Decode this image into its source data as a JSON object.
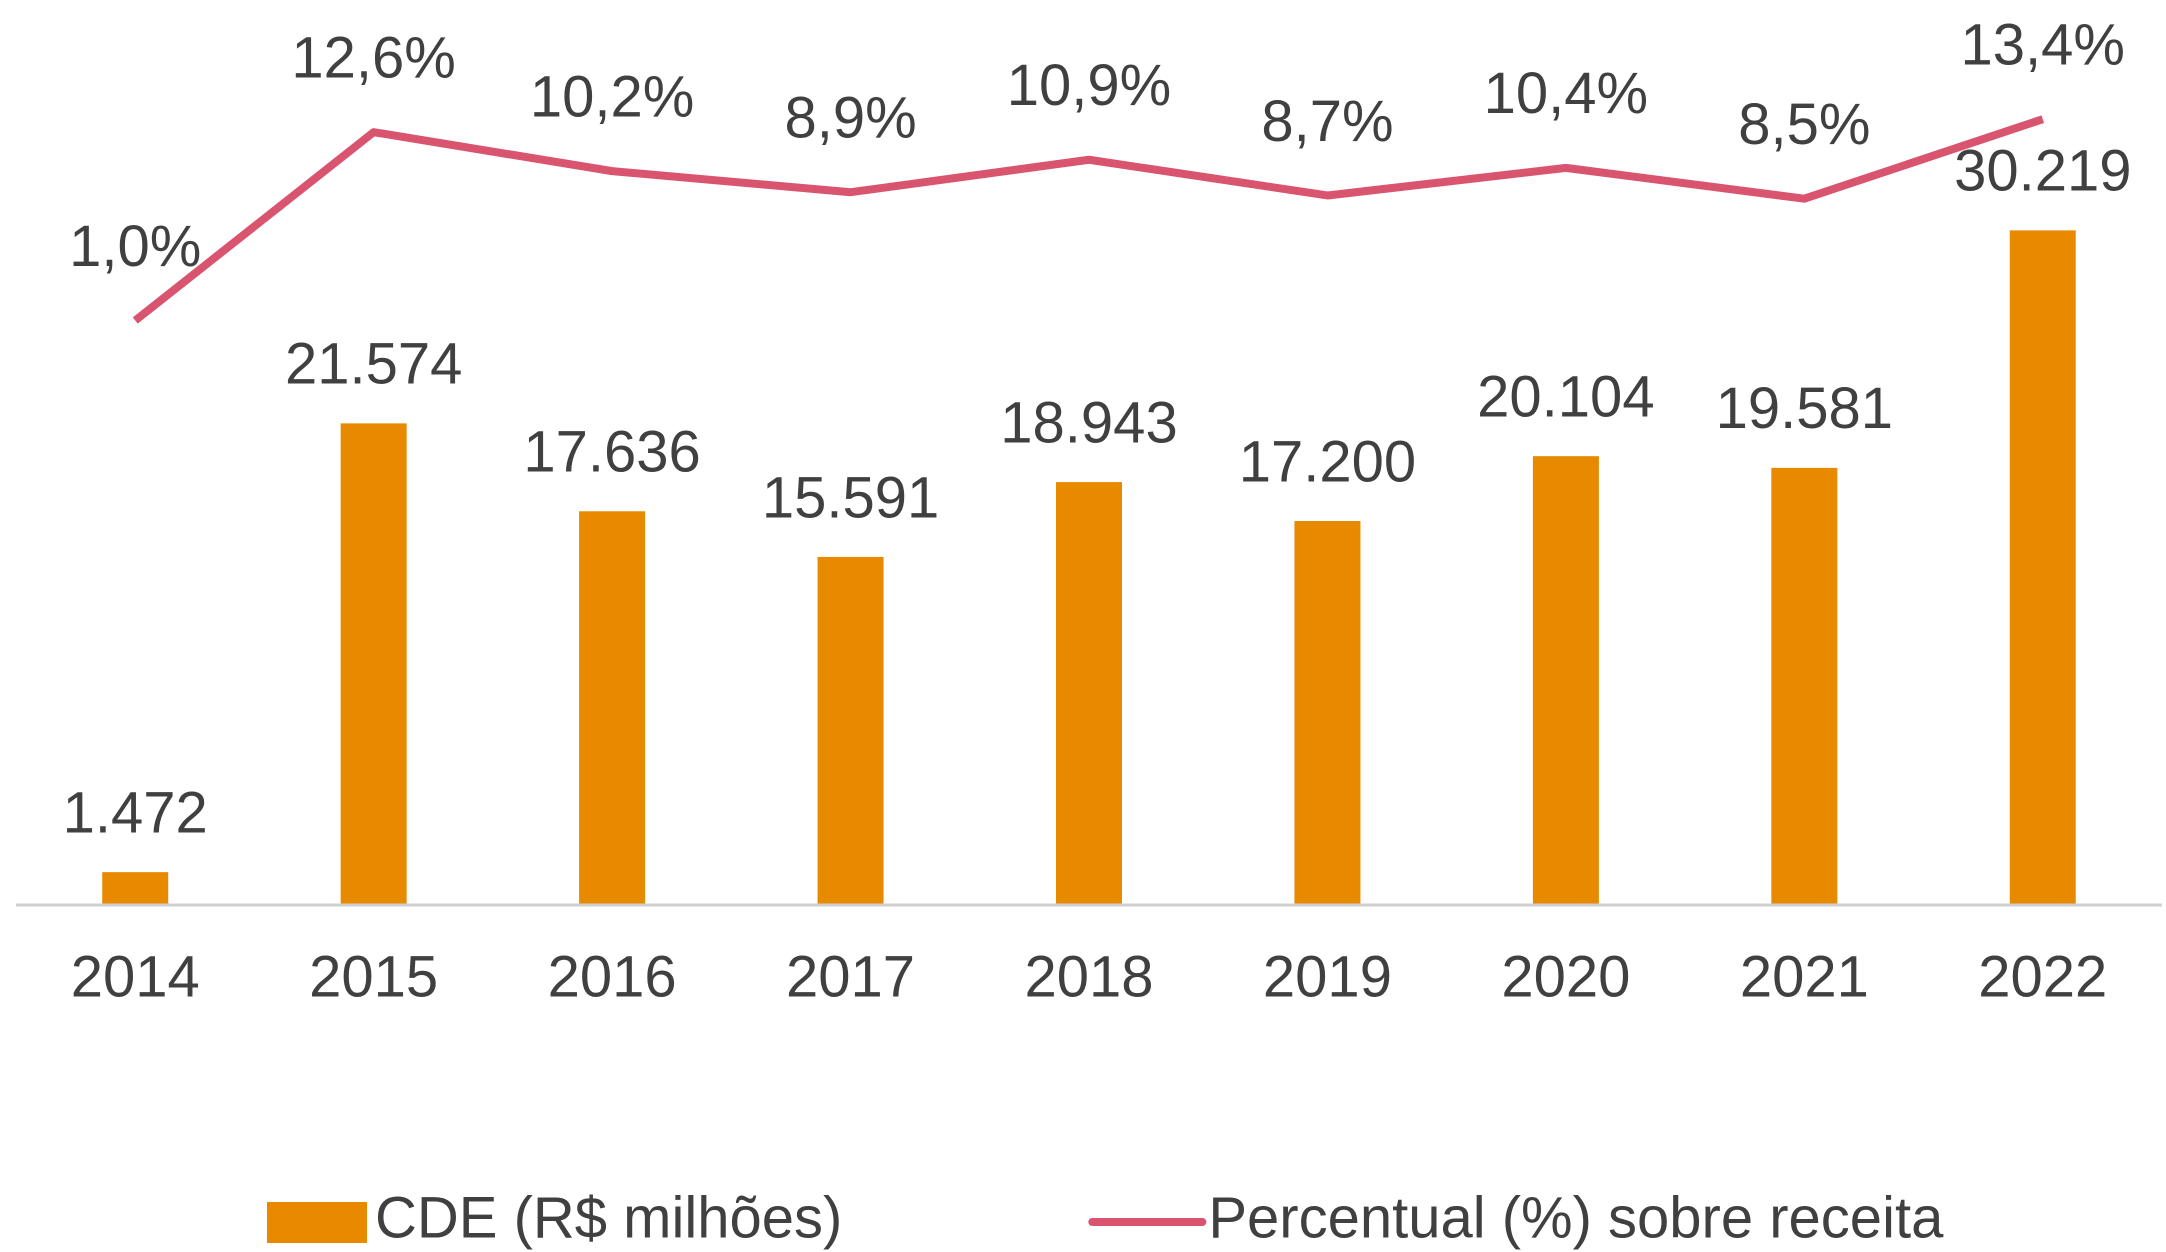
{
  "chart_data": {
    "type": "bar_line",
    "categories": [
      "2014",
      "2015",
      "2016",
      "2017",
      "2018",
      "2019",
      "2020",
      "2021",
      "2022"
    ],
    "series": [
      {
        "name": "CDE (R$ milhões)",
        "type": "bar",
        "color": "#e88a00",
        "values": [
          1472,
          21574,
          17636,
          15591,
          18943,
          17200,
          20104,
          19581,
          30219
        ],
        "value_labels": [
          "1.472",
          "21.574",
          "17.636",
          "15.591",
          "18.943",
          "17.200",
          "20.104",
          "19.581",
          "30.219"
        ]
      },
      {
        "name": "Percentual (%) sobre receita",
        "type": "line",
        "axis": "y2",
        "color": "#d9546e",
        "values": [
          1.0,
          12.6,
          10.2,
          8.9,
          10.9,
          8.7,
          10.4,
          8.5,
          13.4
        ],
        "value_labels": [
          "1,0%",
          "12,6%",
          "10,2%",
          "8,9%",
          "10,9%",
          "8,7%",
          "10,4%",
          "8,5%",
          "13,4%"
        ]
      }
    ],
    "ylim": [
      0,
      40000
    ],
    "y2lim": [
      -35,
      20
    ],
    "legend": "bottom"
  }
}
